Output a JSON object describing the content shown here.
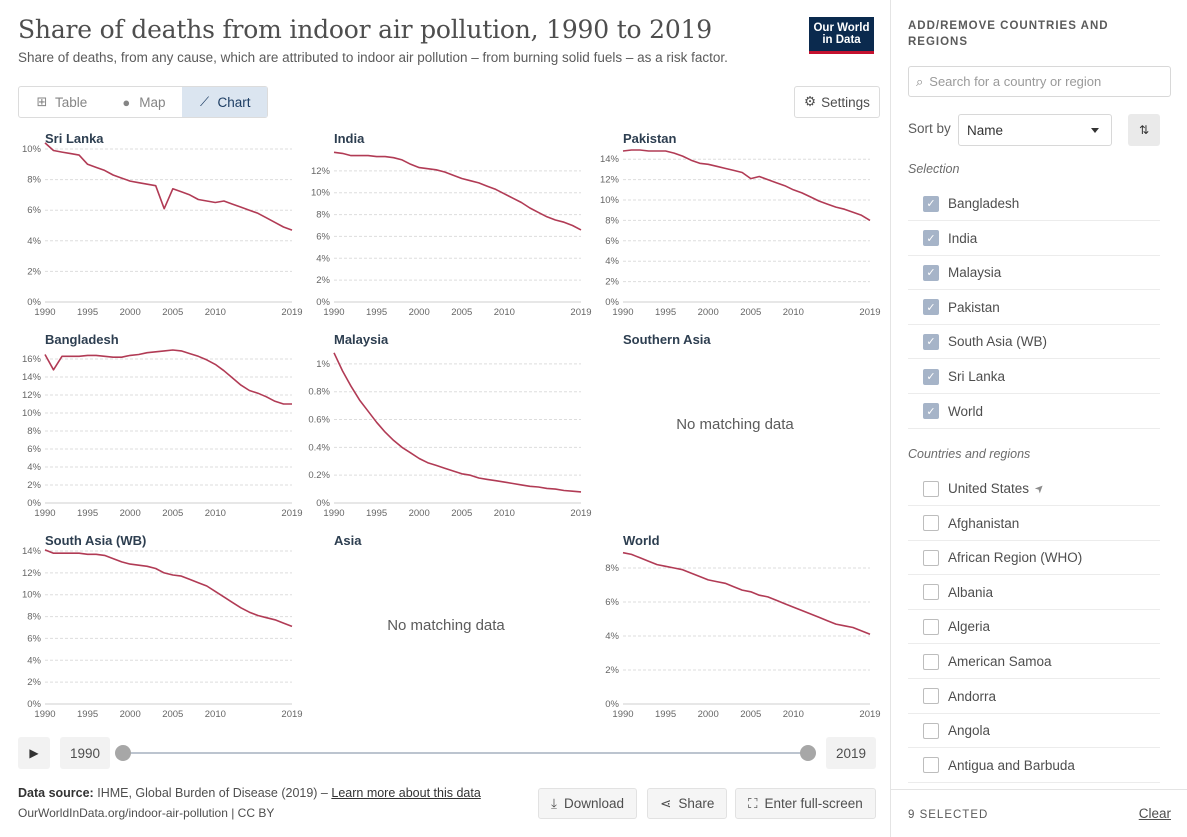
{
  "header": {
    "title": "Share of deaths from indoor air pollution, 1990 to 2019",
    "subtitle": "Share of deaths, from any cause, which are attributed to indoor air pollution – from burning solid fuels – as a risk factor.",
    "logo": "Our World in Data"
  },
  "tabs": [
    {
      "label": "Table",
      "icon": "table-icon",
      "active": false
    },
    {
      "label": "Map",
      "icon": "globe-icon",
      "active": false
    },
    {
      "label": "Chart",
      "icon": "line-chart-icon",
      "active": true
    }
  ],
  "settings_label": "Settings",
  "chart_data": [
    {
      "type": "line",
      "title": "Sri Lanka",
      "x": [
        1990,
        1991,
        1992,
        1993,
        1994,
        1995,
        1996,
        1997,
        1998,
        1999,
        2000,
        2001,
        2002,
        2003,
        2004,
        2005,
        2006,
        2007,
        2008,
        2009,
        2010,
        2011,
        2012,
        2013,
        2014,
        2015,
        2016,
        2017,
        2018,
        2019
      ],
      "y": [
        10.4,
        9.9,
        9.8,
        9.7,
        9.6,
        9.0,
        8.8,
        8.6,
        8.3,
        8.1,
        7.9,
        7.8,
        7.7,
        7.6,
        6.1,
        7.4,
        7.2,
        7.0,
        6.7,
        6.6,
        6.5,
        6.6,
        6.4,
        6.2,
        6.0,
        5.8,
        5.5,
        5.2,
        4.9,
        4.7
      ],
      "ylim": [
        0,
        10
      ],
      "yticks": [
        "0%",
        "2%",
        "4%",
        "6%",
        "8%",
        "10%"
      ],
      "xticks": [
        "1990",
        "1995",
        "2000",
        "2005",
        "2010",
        "2019"
      ]
    },
    {
      "type": "line",
      "title": "India",
      "x": [
        1990,
        1991,
        1992,
        1993,
        1994,
        1995,
        1996,
        1997,
        1998,
        1999,
        2000,
        2001,
        2002,
        2003,
        2004,
        2005,
        2006,
        2007,
        2008,
        2009,
        2010,
        2011,
        2012,
        2013,
        2014,
        2015,
        2016,
        2017,
        2018,
        2019
      ],
      "y": [
        13.7,
        13.6,
        13.4,
        13.4,
        13.4,
        13.3,
        13.3,
        13.2,
        13.0,
        12.6,
        12.3,
        12.2,
        12.1,
        11.9,
        11.6,
        11.3,
        11.1,
        10.9,
        10.6,
        10.3,
        9.9,
        9.5,
        9.1,
        8.6,
        8.2,
        7.8,
        7.5,
        7.3,
        7.0,
        6.6
      ],
      "ylim": [
        0,
        14
      ],
      "yticks": [
        "0%",
        "2%",
        "4%",
        "6%",
        "8%",
        "10%",
        "12%"
      ],
      "xticks": [
        "1990",
        "1995",
        "2000",
        "2005",
        "2010",
        "2019"
      ]
    },
    {
      "type": "line",
      "title": "Pakistan",
      "x": [
        1990,
        1991,
        1992,
        1993,
        1994,
        1995,
        1996,
        1997,
        1998,
        1999,
        2000,
        2001,
        2002,
        2003,
        2004,
        2005,
        2006,
        2007,
        2008,
        2009,
        2010,
        2011,
        2012,
        2013,
        2014,
        2015,
        2016,
        2017,
        2018,
        2019
      ],
      "y": [
        14.8,
        14.9,
        14.9,
        14.8,
        14.8,
        14.8,
        14.6,
        14.3,
        13.9,
        13.6,
        13.5,
        13.3,
        13.1,
        12.9,
        12.7,
        12.1,
        12.3,
        12.0,
        11.7,
        11.4,
        11.0,
        10.7,
        10.3,
        9.9,
        9.6,
        9.3,
        9.1,
        8.8,
        8.5,
        8.0
      ],
      "ylim": [
        0,
        15
      ],
      "yticks": [
        "0%",
        "2%",
        "4%",
        "6%",
        "8%",
        "10%",
        "12%",
        "14%"
      ],
      "xticks": [
        "1990",
        "1995",
        "2000",
        "2005",
        "2010",
        "2019"
      ]
    },
    {
      "type": "line",
      "title": "Bangladesh",
      "x": [
        1990,
        1991,
        1992,
        1993,
        1994,
        1995,
        1996,
        1997,
        1998,
        1999,
        2000,
        2001,
        2002,
        2003,
        2004,
        2005,
        2006,
        2007,
        2008,
        2009,
        2010,
        2011,
        2012,
        2013,
        2014,
        2015,
        2016,
        2017,
        2018,
        2019
      ],
      "y": [
        16.5,
        14.8,
        16.3,
        16.3,
        16.3,
        16.4,
        16.4,
        16.3,
        16.2,
        16.2,
        16.4,
        16.5,
        16.7,
        16.8,
        16.9,
        17.0,
        16.9,
        16.6,
        16.3,
        15.9,
        15.4,
        14.7,
        13.9,
        13.1,
        12.5,
        12.2,
        11.8,
        11.3,
        11.0,
        11.0
      ],
      "ylim": [
        0,
        17
      ],
      "yticks": [
        "0%",
        "2%",
        "4%",
        "6%",
        "8%",
        "10%",
        "12%",
        "14%",
        "16%"
      ],
      "xticks": [
        "1990",
        "1995",
        "2000",
        "2005",
        "2010",
        "2019"
      ]
    },
    {
      "type": "line",
      "title": "Malaysia",
      "x": [
        1990,
        1991,
        1992,
        1993,
        1994,
        1995,
        1996,
        1997,
        1998,
        1999,
        2000,
        2001,
        2002,
        2003,
        2004,
        2005,
        2006,
        2007,
        2008,
        2009,
        2010,
        2011,
        2012,
        2013,
        2014,
        2015,
        2016,
        2017,
        2018,
        2019
      ],
      "y": [
        1.08,
        0.95,
        0.84,
        0.74,
        0.66,
        0.58,
        0.51,
        0.45,
        0.4,
        0.36,
        0.32,
        0.29,
        0.27,
        0.25,
        0.23,
        0.21,
        0.2,
        0.18,
        0.17,
        0.16,
        0.15,
        0.14,
        0.13,
        0.12,
        0.115,
        0.105,
        0.1,
        0.09,
        0.085,
        0.08
      ],
      "ylim": [
        0,
        1.1
      ],
      "yticks": [
        "0%",
        "0.2%",
        "0.4%",
        "0.6%",
        "0.8%",
        "1%"
      ],
      "xticks": [
        "1990",
        "1995",
        "2000",
        "2005",
        "2010",
        "2019"
      ]
    },
    {
      "type": "line",
      "title": "Southern Asia",
      "no_data": "No matching data"
    },
    {
      "type": "line",
      "title": "South Asia (WB)",
      "x": [
        1990,
        1991,
        1992,
        1993,
        1994,
        1995,
        1996,
        1997,
        1998,
        1999,
        2000,
        2001,
        2002,
        2003,
        2004,
        2005,
        2006,
        2007,
        2008,
        2009,
        2010,
        2011,
        2012,
        2013,
        2014,
        2015,
        2016,
        2017,
        2018,
        2019
      ],
      "y": [
        14.1,
        13.8,
        13.8,
        13.8,
        13.8,
        13.7,
        13.7,
        13.6,
        13.3,
        13.0,
        12.8,
        12.7,
        12.6,
        12.4,
        12.0,
        11.8,
        11.7,
        11.4,
        11.1,
        10.8,
        10.3,
        9.8,
        9.3,
        8.8,
        8.4,
        8.1,
        7.9,
        7.7,
        7.4,
        7.1
      ],
      "ylim": [
        0,
        14
      ],
      "yticks": [
        "0%",
        "2%",
        "4%",
        "6%",
        "8%",
        "10%",
        "12%",
        "14%"
      ],
      "xticks": [
        "1990",
        "1995",
        "2000",
        "2005",
        "2010",
        "2019"
      ]
    },
    {
      "type": "line",
      "title": "Asia",
      "no_data": "No matching data"
    },
    {
      "type": "line",
      "title": "World",
      "x": [
        1990,
        1991,
        1992,
        1993,
        1994,
        1995,
        1996,
        1997,
        1998,
        1999,
        2000,
        2001,
        2002,
        2003,
        2004,
        2005,
        2006,
        2007,
        2008,
        2009,
        2010,
        2011,
        2012,
        2013,
        2014,
        2015,
        2016,
        2017,
        2018,
        2019
      ],
      "y": [
        8.9,
        8.8,
        8.6,
        8.4,
        8.2,
        8.1,
        8.0,
        7.9,
        7.7,
        7.5,
        7.3,
        7.2,
        7.1,
        6.9,
        6.7,
        6.6,
        6.4,
        6.3,
        6.1,
        5.9,
        5.7,
        5.5,
        5.3,
        5.1,
        4.9,
        4.7,
        4.6,
        4.5,
        4.3,
        4.1
      ],
      "ylim": [
        0,
        9
      ],
      "yticks": [
        "0%",
        "2%",
        "4%",
        "6%",
        "8%"
      ],
      "xticks": [
        "1990",
        "1995",
        "2000",
        "2005",
        "2010",
        "2019"
      ]
    }
  ],
  "timeline": {
    "play_icon": "play-icon",
    "start_year": "1990",
    "end_year": "2019"
  },
  "footer": {
    "source_label": "Data source:",
    "source_text": "IHME, Global Burden of Disease (2019) –",
    "learn_more": "Learn more about this data",
    "url": "OurWorldInData.org/indoor-air-pollution | CC BY",
    "download": "Download",
    "share": "Share",
    "fullscreen": "Enter full-screen"
  },
  "sidebar": {
    "title": "ADD/REMOVE COUNTRIES AND REGIONS",
    "search_placeholder": "Search for a country or region",
    "sort_label": "Sort by",
    "sort_value": "Name",
    "selection_label": "Selection",
    "selected": [
      "Bangladesh",
      "India",
      "Malaysia",
      "Pakistan",
      "South Asia (WB)",
      "Sri Lanka",
      "World"
    ],
    "others_label": "Countries and regions",
    "others": [
      "United States",
      "Afghanistan",
      "African Region (WHO)",
      "Albania",
      "Algeria",
      "American Samoa",
      "Andorra",
      "Angola",
      "Antigua and Barbuda"
    ],
    "selected_count": "9 SELECTED",
    "clear": "Clear"
  },
  "colors": {
    "line": "#b13b55",
    "grid": "#dddddd",
    "accent": "#0b2a4e"
  }
}
